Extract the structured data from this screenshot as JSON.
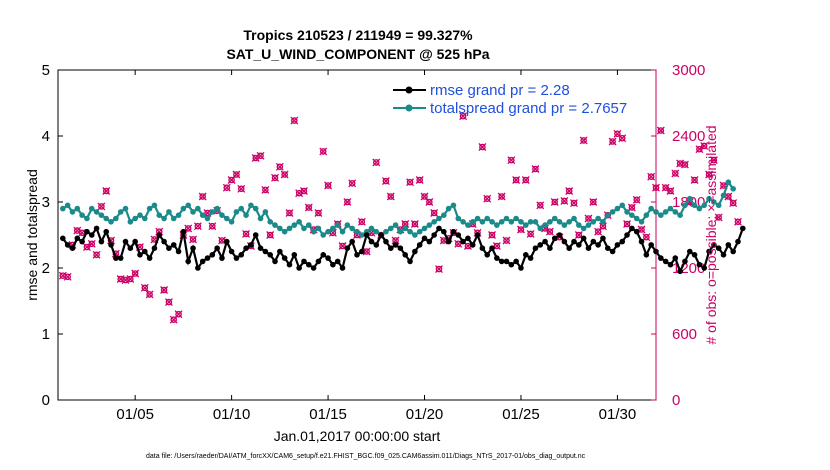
{
  "chart_data": {
    "type": "line",
    "title_line1": "Tropics 210523 / 211949 = 99.327%",
    "title_line2": "SAT_U_WIND_COMPONENT @ 525 hPa",
    "xlabel": "Jan.01,2017 00:00:00 start",
    "ylabel_left": "rmse and totalspread",
    "ylabel_right": "# of obs: o=possible; ×=assimilated",
    "footnote": "data file: /Users/raeder/DAI/ATM_forcXX/CAM6_setup/f.e21.FHIST_BGC.f09_025.CAM6assim.011/Diags_NTrS_2017-01/obs_diag_output.nc",
    "x_range": [
      1,
      32
    ],
    "x_ticks": [
      5,
      10,
      15,
      20,
      25,
      30
    ],
    "x_tick_labels": [
      "01/05",
      "01/10",
      "01/15",
      "01/20",
      "01/25",
      "01/30"
    ],
    "y_left_range": [
      0,
      5
    ],
    "y_left_ticks": [
      0,
      1,
      2,
      3,
      4,
      5
    ],
    "y_left_tick_labels": [
      "0",
      "1",
      "2",
      "3",
      "4",
      "5"
    ],
    "y_right_range": [
      0,
      3000
    ],
    "y_right_ticks": [
      0,
      600,
      1200,
      1800,
      2400,
      3000
    ],
    "y_right_tick_labels": [
      "0",
      "600",
      "1200",
      "1800",
      "2400",
      "3000"
    ],
    "legend": [
      {
        "label": "rmse grand pr = 2.28",
        "color": "#000000"
      },
      {
        "label": "totalspread grand pr = 2.7657",
        "color": "#1b8a8a"
      }
    ],
    "colors": {
      "rmse": "#000000",
      "spread": "#1b8a8a",
      "obs": "#cc0066"
    },
    "series": [
      {
        "name": "rmse",
        "values": [
          2.45,
          2.35,
          2.3,
          2.45,
          2.4,
          2.55,
          2.5,
          2.6,
          2.4,
          2.55,
          2.35,
          2.15,
          2.15,
          2.4,
          2.3,
          2.4,
          2.2,
          2.25,
          2.15,
          2.3,
          2.5,
          2.4,
          2.3,
          2.35,
          2.25,
          2.55,
          2.1,
          2.3,
          2.0,
          2.1,
          2.15,
          2.2,
          2.3,
          2.15,
          2.4,
          2.25,
          2.15,
          2.2,
          2.3,
          2.35,
          2.5,
          2.3,
          2.25,
          2.2,
          2.1,
          2.25,
          2.15,
          2.05,
          2.2,
          2.0,
          2.1,
          2.05,
          2.0,
          2.1,
          2.2,
          2.15,
          2.05,
          2.1,
          2.0,
          2.3,
          2.4,
          2.2,
          2.25,
          2.5,
          2.4,
          2.35,
          2.5,
          2.4,
          2.3,
          2.35,
          2.3,
          2.2,
          2.1,
          2.25,
          2.35,
          2.45,
          2.4,
          2.5,
          2.6,
          2.55,
          2.4,
          2.55,
          2.5,
          2.4,
          2.45,
          2.35,
          2.5,
          2.3,
          2.2,
          2.3,
          2.15,
          2.1,
          2.1,
          2.05,
          2.1,
          2.0,
          2.2,
          2.15,
          2.3,
          2.35,
          2.4,
          2.3,
          2.45,
          2.5,
          2.4,
          2.3,
          2.4,
          2.35,
          2.45,
          2.3,
          2.4,
          2.35,
          2.45,
          2.3,
          2.25,
          2.35,
          2.4,
          2.5,
          2.6,
          2.55,
          2.4,
          2.2,
          2.35,
          2.25,
          2.15,
          2.1,
          2.05,
          2.15,
          1.95,
          2.1,
          2.25,
          2.2,
          2.05,
          2.0,
          2.25,
          2.35,
          2.3,
          2.2,
          2.35,
          2.25,
          2.4,
          2.6
        ],
        "x_start": 1.25,
        "x_step": 0.25
      },
      {
        "name": "totalspread",
        "values": [
          2.9,
          2.95,
          2.85,
          2.9,
          2.8,
          2.75,
          2.9,
          2.85,
          2.8,
          2.75,
          2.7,
          2.75,
          2.85,
          2.9,
          2.7,
          2.75,
          2.8,
          2.75,
          2.9,
          2.95,
          2.8,
          2.75,
          2.85,
          2.75,
          2.8,
          2.9,
          2.95,
          2.85,
          2.9,
          2.8,
          2.75,
          2.85,
          2.9,
          2.8,
          2.75,
          2.7,
          2.85,
          2.9,
          2.8,
          2.95,
          2.9,
          2.75,
          2.85,
          2.7,
          2.65,
          2.6,
          2.55,
          2.6,
          2.65,
          2.7,
          2.6,
          2.65,
          2.55,
          2.6,
          2.5,
          2.55,
          2.6,
          2.65,
          2.55,
          2.65,
          2.6,
          2.55,
          2.5,
          2.55,
          2.6,
          2.55,
          2.5,
          2.55,
          2.6,
          2.65,
          2.55,
          2.6,
          2.55,
          2.5,
          2.55,
          2.6,
          2.65,
          2.7,
          2.75,
          2.8,
          2.9,
          2.95,
          2.75,
          2.7,
          2.65,
          2.7,
          2.75,
          2.7,
          2.75,
          2.7,
          2.65,
          2.7,
          2.75,
          2.7,
          2.75,
          2.7,
          2.65,
          2.7,
          2.7,
          2.6,
          2.65,
          2.7,
          2.75,
          2.7,
          2.65,
          2.7,
          2.75,
          2.65,
          2.6,
          2.65,
          2.7,
          2.75,
          2.7,
          2.8,
          2.85,
          2.9,
          2.95,
          2.85,
          2.8,
          2.75,
          2.7,
          2.8,
          2.9,
          2.85,
          2.8,
          2.85,
          2.9,
          2.85,
          2.8,
          2.95,
          3.05,
          2.95,
          2.9,
          2.95,
          3.05,
          3.0,
          2.95,
          3.1,
          3.3,
          3.2
        ],
        "x_start": 1.25,
        "x_step": 0.25
      },
      {
        "name": "obs_count",
        "values": [
          1130,
          1120,
          1410,
          1540,
          1520,
          1390,
          1420,
          1320,
          1760,
          1900,
          1450,
          1330,
          1100,
          1090,
          1100,
          1150,
          1390,
          1020,
          960,
          1460,
          1530,
          1000,
          890,
          730,
          780,
          1500,
          1560,
          1460,
          1580,
          1850,
          1700,
          1580,
          1720,
          1450,
          1930,
          2000,
          2050,
          1920,
          1510,
          1400,
          2200,
          2220,
          1910,
          1500,
          2020,
          2120,
          2050,
          1700,
          2540,
          1880,
          1900,
          1750,
          1550,
          1700,
          2260,
          1950,
          1520,
          1600,
          1400,
          1800,
          1970,
          1500,
          1620,
          1350,
          1520,
          2160,
          1500,
          1990,
          1850,
          1450,
          1550,
          1600,
          1980,
          1600,
          2000,
          1850,
          1800,
          1700,
          1190,
          1450,
          1470,
          1520,
          1420,
          2580,
          1400,
          1600,
          1520,
          2300,
          1830,
          1500,
          1400,
          1850,
          1450,
          2180,
          2000,
          1550,
          2000,
          1510,
          2100,
          1770,
          1560,
          1530,
          1800,
          1480,
          1810,
          1900,
          1790,
          1500,
          2360,
          1650,
          1800,
          1530,
          1580,
          1680,
          2350,
          2420,
          2380,
          1600,
          1750,
          1820,
          1550,
          1480,
          2030,
          1930,
          2450,
          1930,
          1900,
          2060,
          2150,
          2140,
          1800,
          2000,
          2280,
          2310,
          2050,
          2180,
          1660,
          1950,
          1850,
          1790,
          1620
        ],
        "x_start": 1.25,
        "x_step": 0.25
      }
    ]
  }
}
